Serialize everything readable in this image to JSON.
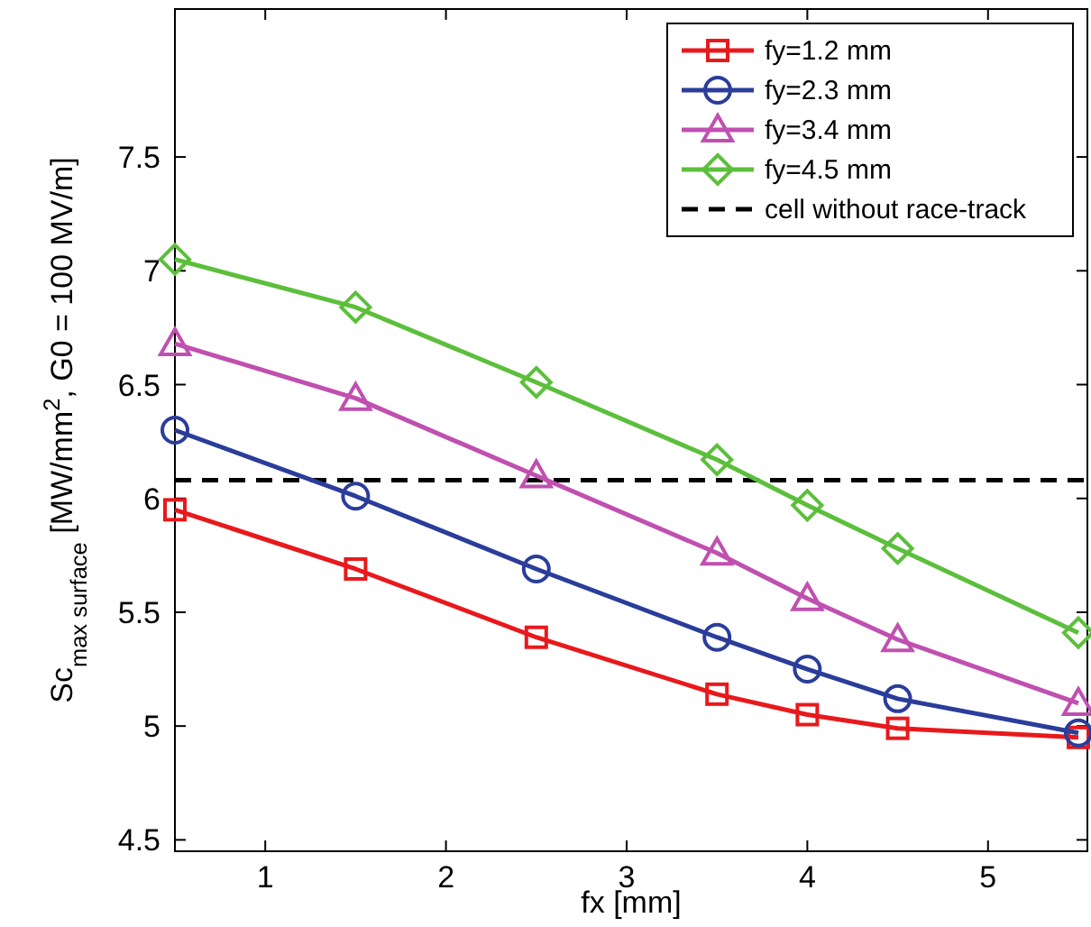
{
  "chart_data": {
    "type": "line",
    "xlabel": "fx [mm]",
    "ylabel": "Sc$_{max surface}$ [MW/mm$^{2}$, G0 = 100 MV/m]",
    "xlim": [
      0.5,
      5.55
    ],
    "ylim": [
      4.45,
      8.15
    ],
    "xticks": [
      1,
      2,
      3,
      4,
      5
    ],
    "yticks": [
      4.5,
      5,
      5.5,
      6,
      6.5,
      7,
      7.5
    ],
    "x": [
      0.5,
      1.5,
      2.5,
      3.5,
      4,
      4.5,
      5.5
    ],
    "series": [
      {
        "name": "fy=1.2 mm",
        "color": "#e8191c",
        "marker": "square",
        "values": [
          5.95,
          5.69,
          5.39,
          5.14,
          5.05,
          4.99,
          4.95
        ]
      },
      {
        "name": "fy=2.3 mm",
        "color": "#2b3d9a",
        "marker": "circle",
        "values": [
          6.3,
          6.01,
          5.69,
          5.39,
          5.25,
          5.12,
          4.97
        ]
      },
      {
        "name": "fy=3.4 mm",
        "color": "#c050b0",
        "marker": "triangle",
        "values": [
          6.68,
          6.44,
          6.1,
          5.76,
          5.56,
          5.38,
          5.1
        ]
      },
      {
        "name": "fy=4.5 mm",
        "color": "#5cbf3c",
        "marker": "diamond",
        "values": [
          7.05,
          6.84,
          6.51,
          6.17,
          5.97,
          5.78,
          5.41
        ]
      }
    ],
    "ref_lines": [
      {
        "axis": "y",
        "value": 6.08,
        "label": "cell without race-track",
        "color": "#000000",
        "line_style": "dashed"
      }
    ],
    "legend": "top right",
    "line_style": "solid"
  }
}
